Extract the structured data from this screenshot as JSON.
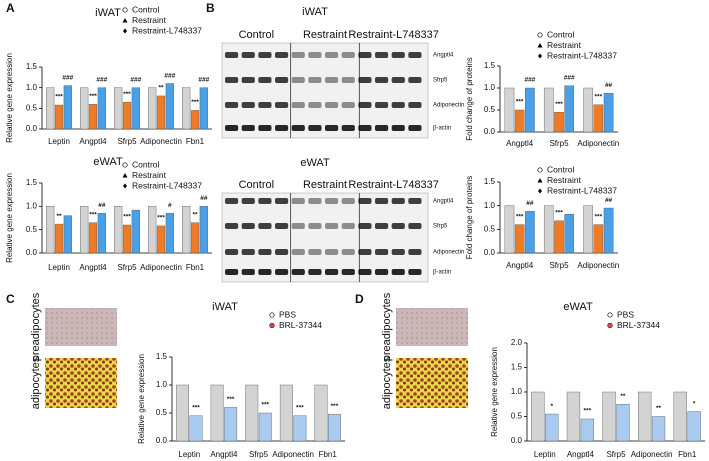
{
  "panel_labels": [
    "A",
    "B",
    "C",
    "D"
  ],
  "blots": [
    {
      "title": "iWAT",
      "groups": [
        "Control",
        "Restraint",
        "Restraint-L748337"
      ],
      "bands": [
        "Angptl4",
        "Sfrp5",
        "Adiponectin",
        "β-actin"
      ]
    },
    {
      "title": "eWAT",
      "groups": [
        "Control",
        "Restraint",
        "Restraint-L748337"
      ],
      "bands": [
        "Angptl4",
        "Sfrp5",
        "Adiponectin",
        "β-actin"
      ]
    }
  ],
  "cell_images": [
    {
      "labels": [
        "preadipocytes",
        "adipocytes"
      ]
    },
    {
      "labels": [
        "preadipocytes",
        "adipocytes"
      ]
    }
  ],
  "chart_data": [
    {
      "type": "bar",
      "title": "iWAT",
      "ylabel": "Relative gene expression",
      "categories": [
        "Leptin",
        "Angptl4",
        "Sfrp5",
        "Adiponectin",
        "Fbn1"
      ],
      "series": [
        {
          "name": "Control",
          "color": "#d3d3d3",
          "values": [
            1.0,
            1.0,
            1.0,
            1.0,
            1.0
          ],
          "significance": [
            null,
            null,
            null,
            null,
            null
          ]
        },
        {
          "name": "Restraint",
          "color": "#f07b27",
          "values": [
            0.58,
            0.6,
            0.65,
            0.8,
            0.45
          ],
          "significance": [
            "***",
            "***",
            "***",
            "**",
            "***"
          ]
        },
        {
          "name": "Restraint-L748337",
          "color": "#4a9fe6",
          "values": [
            1.05,
            1.0,
            1.0,
            1.1,
            1.0
          ],
          "significance": [
            "###",
            "###",
            "###",
            "###",
            "###"
          ]
        }
      ],
      "ylim": [
        0,
        1.5
      ],
      "yticks": [
        {
          "value": 0,
          "label": "0.0"
        },
        {
          "value": 0.5,
          "label": "0.5"
        },
        {
          "value": 1,
          "label": "1.0"
        },
        {
          "value": 1.5,
          "label": "1.5"
        }
      ]
    },
    {
      "type": "bar",
      "title": "eWAT",
      "ylabel": "Relative gene expression",
      "categories": [
        "Leptin",
        "Angptl4",
        "Sfrp5",
        "Adiponectin",
        "Fbn1"
      ],
      "series": [
        {
          "name": "Control",
          "color": "#d3d3d3",
          "values": [
            1.0,
            1.0,
            1.0,
            1.0,
            1.0
          ],
          "significance": [
            null,
            null,
            null,
            null,
            null
          ]
        },
        {
          "name": "Restraint",
          "color": "#f07b27",
          "values": [
            0.62,
            0.65,
            0.6,
            0.58,
            0.65
          ],
          "significance": [
            "**",
            "***",
            "***",
            "***",
            "**"
          ]
        },
        {
          "name": "Restraint-L748337",
          "color": "#4a9fe6",
          "values": [
            0.8,
            0.85,
            0.92,
            0.85,
            1.0
          ],
          "significance": [
            null,
            "##",
            null,
            "#",
            "##"
          ]
        }
      ],
      "ylim": [
        0,
        1.5
      ],
      "yticks": [
        {
          "value": 0,
          "label": "0.0"
        },
        {
          "value": 0.5,
          "label": "0.5"
        },
        {
          "value": 1,
          "label": "1.0"
        },
        {
          "value": 1.5,
          "label": "1.5"
        }
      ]
    },
    {
      "type": "bar",
      "ylabel": "Fold change of proteins",
      "categories": [
        "Angptl4",
        "Sfrp5",
        "Adiponectin"
      ],
      "series": [
        {
          "name": "Control",
          "color": "#d3d3d3",
          "values": [
            1.0,
            1.0,
            1.0
          ],
          "significance": [
            null,
            null,
            null
          ]
        },
        {
          "name": "Restraint",
          "color": "#f07b27",
          "values": [
            0.5,
            0.45,
            0.62
          ],
          "significance": [
            "***",
            "***",
            "***"
          ]
        },
        {
          "name": "Restraint-L748337",
          "color": "#4a9fe6",
          "values": [
            1.0,
            1.05,
            0.88
          ],
          "significance": [
            "###",
            "###",
            "##"
          ]
        }
      ],
      "ylim": [
        0,
        1.5
      ],
      "yticks": [
        {
          "value": 0,
          "label": "0.0"
        },
        {
          "value": 0.5,
          "label": "0.5"
        },
        {
          "value": 1,
          "label": "1.0"
        },
        {
          "value": 1.5,
          "label": "1.5"
        }
      ]
    },
    {
      "type": "bar",
      "ylabel": "Fold change of proteins",
      "categories": [
        "Angptl4",
        "Sfrp5",
        "Adiponectin"
      ],
      "series": [
        {
          "name": "Control",
          "color": "#d3d3d3",
          "values": [
            1.0,
            1.0,
            1.0
          ],
          "significance": [
            null,
            null,
            null
          ]
        },
        {
          "name": "Restraint",
          "color": "#f07b27",
          "values": [
            0.6,
            0.68,
            0.6
          ],
          "significance": [
            "***",
            "***",
            "***"
          ]
        },
        {
          "name": "Restraint-L748337",
          "color": "#4a9fe6",
          "values": [
            0.88,
            0.82,
            0.95
          ],
          "significance": [
            "##",
            null,
            "##"
          ]
        }
      ],
      "ylim": [
        0,
        1.5
      ],
      "yticks": [
        {
          "value": 0,
          "label": "0.0"
        },
        {
          "value": 0.5,
          "label": "0.5"
        },
        {
          "value": 1,
          "label": "1.0"
        },
        {
          "value": 1.5,
          "label": "1.5"
        }
      ]
    },
    {
      "type": "bar",
      "title": "iWAT",
      "ylabel": "Relative gene expression",
      "categories": [
        "Leptin",
        "Angptl4",
        "Sfrp5",
        "Adiponectin",
        "Fbn1"
      ],
      "series": [
        {
          "name": "PBS",
          "color": "#d3d3d3",
          "values": [
            1.0,
            1.0,
            1.0,
            1.0,
            1.0
          ],
          "significance": [
            null,
            null,
            null,
            null,
            null
          ]
        },
        {
          "name": "BRL-37344",
          "color": "#a9cbef",
          "values": [
            0.45,
            0.6,
            0.5,
            0.45,
            0.48
          ],
          "significance": [
            "***",
            "***",
            "***",
            "***",
            "***"
          ]
        }
      ],
      "ylim": [
        0,
        1.5
      ],
      "yticks": [
        {
          "value": 0,
          "label": "0.0"
        },
        {
          "value": 0.5,
          "label": "0.5"
        },
        {
          "value": 1,
          "label": "1.0"
        },
        {
          "value": 1.5,
          "label": "1.5"
        }
      ]
    },
    {
      "type": "bar",
      "title": "eWAT",
      "ylabel": "Relative gene expression",
      "categories": [
        "Leptin",
        "Angptl4",
        "Sfrp5",
        "Adiponectin",
        "Fbn1"
      ],
      "series": [
        {
          "name": "PBS",
          "color": "#d3d3d3",
          "values": [
            1.0,
            1.0,
            1.0,
            1.0,
            1.0
          ],
          "significance": [
            null,
            null,
            null,
            null,
            null
          ]
        },
        {
          "name": "BRL-37344",
          "color": "#a9cbef",
          "values": [
            0.55,
            0.45,
            0.75,
            0.5,
            0.6
          ],
          "significance": [
            "*",
            "***",
            "**",
            "**",
            "*"
          ]
        }
      ],
      "ylim": [
        0,
        2
      ],
      "yticks": [
        {
          "value": 0,
          "label": "0.0"
        },
        {
          "value": 0.5,
          "label": "0.5"
        },
        {
          "value": 1,
          "label": "1.0"
        },
        {
          "value": 1.5,
          "label": "1.5"
        },
        {
          "value": 2,
          "label": "2.0"
        }
      ]
    }
  ]
}
